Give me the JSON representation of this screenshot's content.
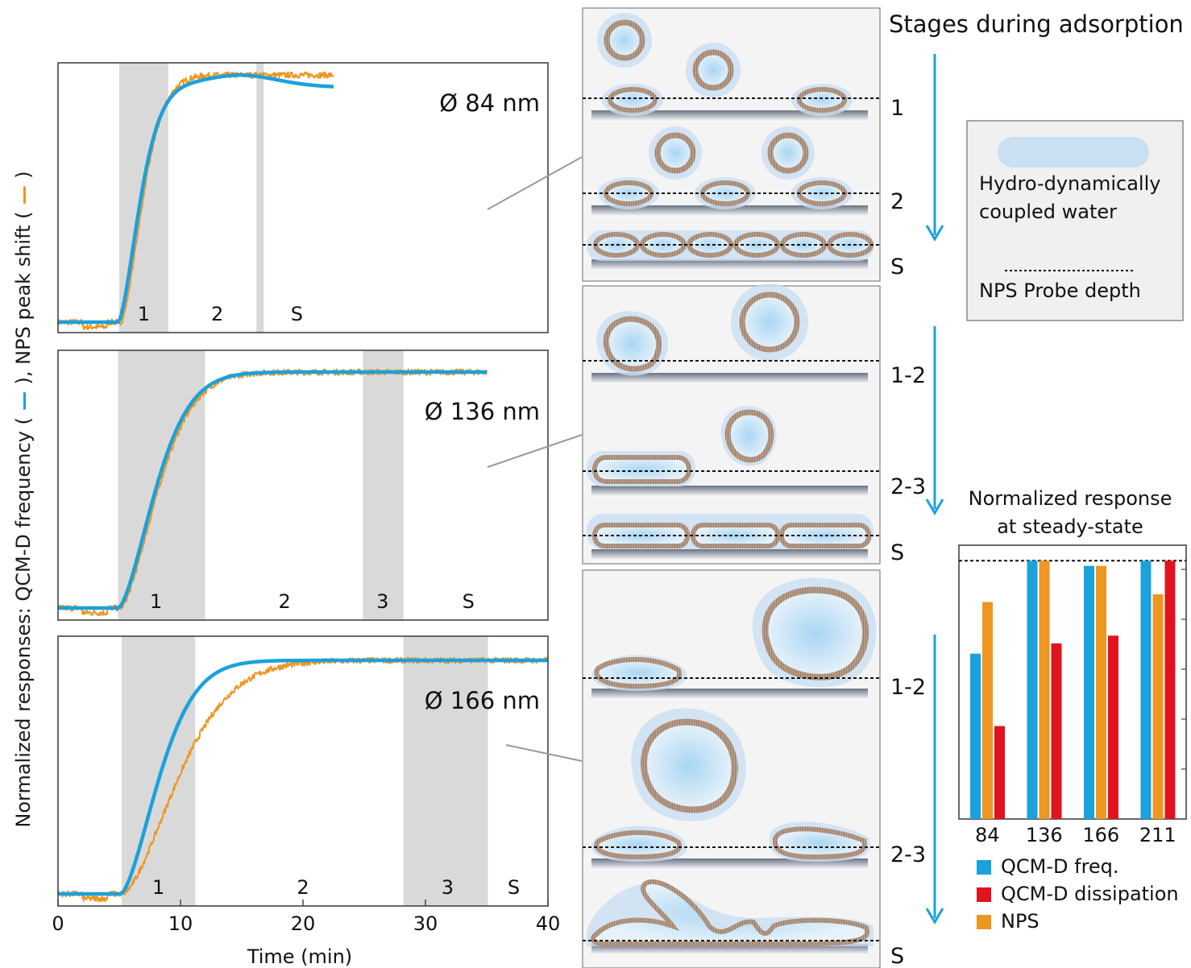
{
  "figure": {
    "y_axis_label_prefix": "Normalized responses: QCM-D frequency (",
    "y_axis_label_mid": "), NPS peak shift (",
    "y_axis_label_suffix": ")",
    "stages_title": "Stages during adsorption",
    "legend_box": {
      "water_label_line1": "Hydro-dynamically",
      "water_label_line2": "coupled water",
      "probe_label": "NPS Probe depth"
    },
    "panel_stage_labels": [
      [
        "1",
        "2",
        "S"
      ],
      [
        "1-2",
        "2-3",
        "S"
      ],
      [
        "1-2",
        "2-3",
        "S"
      ]
    ]
  },
  "chart_data": [
    {
      "type": "line",
      "id": "kinetics_84",
      "label": "Ø 84 nm",
      "x_range": [
        0,
        40
      ],
      "y_range": [
        0,
        1
      ],
      "shaded_regions": [
        [
          5,
          9
        ],
        [
          16.2,
          16.8
        ]
      ],
      "region_labels": [
        {
          "text": "1",
          "x": 7
        },
        {
          "text": "2",
          "x": 13
        },
        {
          "text": "S",
          "x": 19.5
        }
      ],
      "series": [
        {
          "color": "#ee9622",
          "x_end": 22.5,
          "onset": 5,
          "tau": 2.3,
          "lag": 0.12,
          "sat": 1.04
        },
        {
          "color": "#1ba1db",
          "x_end": 22.5,
          "onset": 4.9,
          "tau": 2.25,
          "overshoot": 0.04
        }
      ]
    },
    {
      "type": "line",
      "id": "kinetics_136",
      "label": "Ø 136 nm",
      "x_range": [
        0,
        40
      ],
      "y_range": [
        0,
        1
      ],
      "shaded_regions": [
        [
          4.9,
          12
        ],
        [
          24.9,
          28.2
        ]
      ],
      "region_labels": [
        {
          "text": "1",
          "x": 8
        },
        {
          "text": "2",
          "x": 18.5
        },
        {
          "text": "3",
          "x": 26.5
        },
        {
          "text": "S",
          "x": 33.5
        }
      ],
      "series": [
        {
          "color": "#ee9622",
          "x_end": 35,
          "onset": 5,
          "tau": 3.9,
          "lag": 0.08,
          "sat": 1.0
        },
        {
          "color": "#1ba1db",
          "x_end": 35,
          "onset": 4.9,
          "tau": 3.85
        }
      ]
    },
    {
      "type": "line",
      "id": "kinetics_166",
      "label": "Ø 166 nm",
      "x_range": [
        0,
        40
      ],
      "x_ticks": [
        0,
        10,
        20,
        30,
        40
      ],
      "xlabel": "Time (min)",
      "y_range": [
        0,
        1
      ],
      "shaded_regions": [
        [
          5.2,
          11.2
        ],
        [
          28.2,
          35.1
        ]
      ],
      "region_labels": [
        {
          "text": "1",
          "x": 8.2
        },
        {
          "text": "2",
          "x": 20
        },
        {
          "text": "3",
          "x": 31.8
        },
        {
          "text": "S",
          "x": 37.2
        }
      ],
      "series": [
        {
          "color": "#ee9622",
          "x_end": 40,
          "onset": 5.2,
          "tau": 5.8,
          "lag": 0.05,
          "sat": 1.0
        },
        {
          "color": "#1ba1db",
          "x_end": 40,
          "onset": 5.1,
          "tau": 4.0
        }
      ]
    },
    {
      "type": "bar",
      "id": "steady_state",
      "title_line1": "Normalized response",
      "title_line2": "at steady-state",
      "categories": [
        "84",
        "136",
        "166",
        "211"
      ],
      "reference_line": 1.0,
      "y_range": [
        0,
        1.06
      ],
      "series": [
        {
          "name": "QCM-D freq.",
          "color": "#1ba1db",
          "values": [
            0.64,
            1.0,
            0.98,
            1.0
          ]
        },
        {
          "name": "QCM-D dissipation",
          "color": "#e0141e",
          "values": [
            0.36,
            0.68,
            0.71,
            1.0
          ]
        },
        {
          "name": "NPS",
          "color": "#ee9622",
          "values": [
            0.84,
            1.0,
            0.98,
            0.87
          ]
        }
      ]
    }
  ]
}
